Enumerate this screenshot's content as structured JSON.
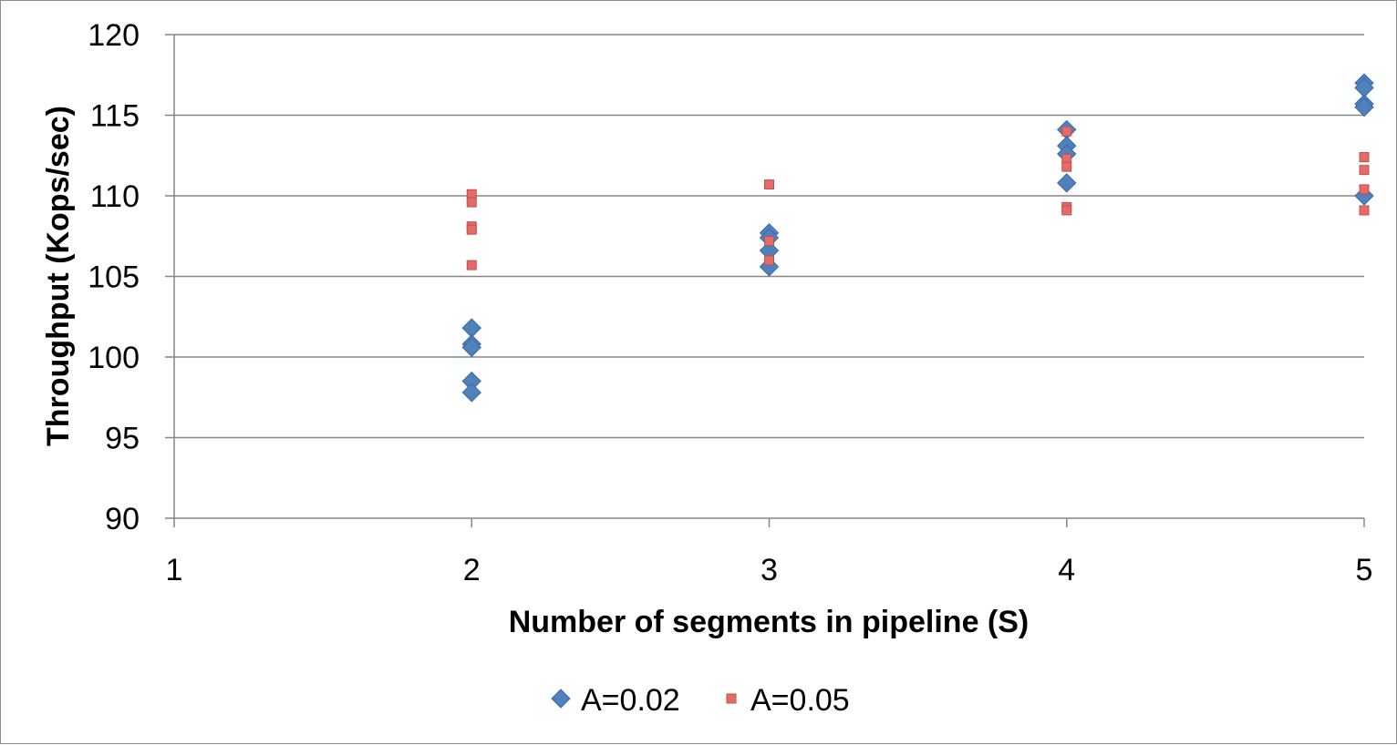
{
  "chart_data": {
    "type": "scatter",
    "title": "",
    "xlabel": "Number of segments in pipeline (S)",
    "ylabel": "Throughput (Kops/sec)",
    "xlim": [
      1,
      5
    ],
    "ylim": [
      90,
      120
    ],
    "x_ticks": [
      "1",
      "2",
      "3",
      "4",
      "5"
    ],
    "y_ticks": [
      "90",
      "95",
      "100",
      "105",
      "110",
      "115",
      "120"
    ],
    "grid": "horizontal",
    "legend_position": "bottom",
    "series": [
      {
        "name": "A=0.02",
        "color": "#4f81bd",
        "marker": "diamond",
        "points": [
          [
            2,
            101.8
          ],
          [
            2,
            100.8
          ],
          [
            2,
            100.6
          ],
          [
            2,
            98.5
          ],
          [
            2,
            97.8
          ],
          [
            3,
            107.7
          ],
          [
            3,
            107.4
          ],
          [
            3,
            106.6
          ],
          [
            3,
            105.6
          ],
          [
            4,
            114.1
          ],
          [
            4,
            113.1
          ],
          [
            4,
            112.6
          ],
          [
            4,
            110.8
          ],
          [
            5,
            117.0
          ],
          [
            5,
            116.7
          ],
          [
            5,
            115.7
          ],
          [
            5,
            115.5
          ],
          [
            5,
            110.0
          ]
        ]
      },
      {
        "name": "A=0.05",
        "color": "#c0504d",
        "marker": "square",
        "points": [
          [
            2,
            110.1
          ],
          [
            2,
            109.6
          ],
          [
            2,
            108.1
          ],
          [
            2,
            107.9
          ],
          [
            2,
            105.7
          ],
          [
            3,
            110.7
          ],
          [
            3,
            107.2
          ],
          [
            3,
            106.0
          ],
          [
            4,
            114.0
          ],
          [
            4,
            112.3
          ],
          [
            4,
            111.8
          ],
          [
            4,
            109.3
          ],
          [
            4,
            109.1
          ],
          [
            5,
            112.4
          ],
          [
            5,
            111.6
          ],
          [
            5,
            110.4
          ],
          [
            5,
            109.1
          ]
        ]
      }
    ]
  }
}
